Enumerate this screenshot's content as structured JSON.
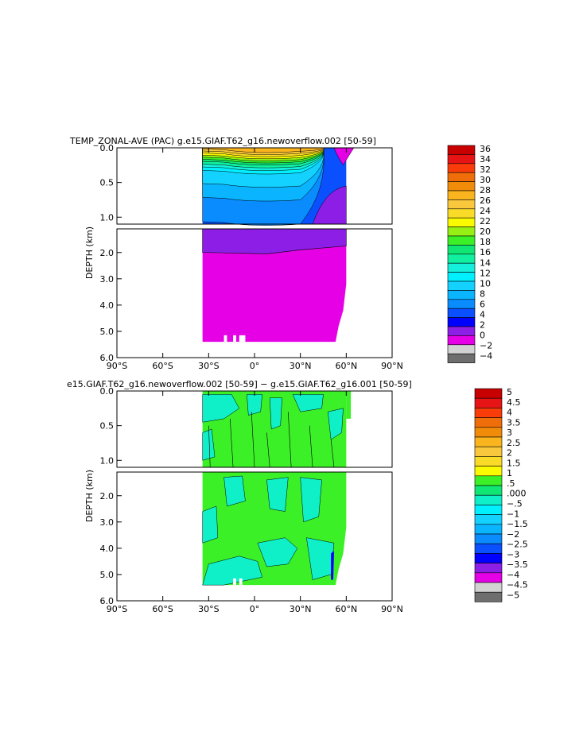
{
  "colors": {
    "temp_palette": [
      "#6e6e6e",
      "#d2d2d2",
      "#e600e6",
      "#8c1ee6",
      "#0000ff",
      "#0a50ff",
      "#0a8cff",
      "#0ab4ff",
      "#14d2ff",
      "#00f0ff",
      "#14f0dc",
      "#10f0a0",
      "#10e673",
      "#3cf028",
      "#96f014",
      "#fafa00",
      "#fadc28",
      "#fac83c",
      "#fab41e",
      "#f08c0a",
      "#f06e0a",
      "#fa3c0a",
      "#e61414",
      "#c80000"
    ],
    "diff_palette": [
      "#6e6e6e",
      "#d2d2d2",
      "#e600e6",
      "#8c1ee6",
      "#0000ff",
      "#0a50ff",
      "#0a8cff",
      "#0ab4ff",
      "#14d2ff",
      "#00f0ff",
      "#10f0c8",
      "#10e673",
      "#3cf028",
      "#fafa00",
      "#fadc28",
      "#fac83c",
      "#fab41e",
      "#f08c0a",
      "#f06e0a",
      "#fa3c0a",
      "#e61414",
      "#c80000"
    ]
  },
  "chart_data": [
    {
      "type": "heatmap",
      "title": "TEMP_ZONAL-AVE (PAC) g.e15.GIAF.T62_g16.newoverflow.002 [50-59]",
      "ylabel": "DEPTH (km)",
      "xlabel": "",
      "x_ticks": [
        "90°S",
        "60°S",
        "30°S",
        "0°",
        "30°N",
        "60°N",
        "90°N"
      ],
      "x_tick_values": [
        -90,
        -60,
        -30,
        0,
        30,
        60,
        90
      ],
      "y_ticks_upper": [
        "0.0",
        "0.5",
        "1.0"
      ],
      "y_tick_values_upper": [
        0.0,
        0.5,
        1.0
      ],
      "y_ticks_lower": [
        "2.0",
        "3.0",
        "4.0",
        "5.0",
        "6.0"
      ],
      "y_tick_values_lower": [
        2.0,
        3.0,
        4.0,
        5.0,
        6.0
      ],
      "xlim": [
        -90,
        90
      ],
      "ylim_upper": [
        0,
        1.1
      ],
      "ylim_lower": [
        1.1,
        6.0
      ],
      "colorbar_labels": [
        "36",
        "34",
        "32",
        "30",
        "28",
        "26",
        "24",
        "22",
        "20",
        "18",
        "16",
        "14",
        "12",
        "10",
        "8",
        "6",
        "4",
        "2",
        "0",
        "−2",
        "−4"
      ],
      "colorbar_levels": [
        -4,
        -2,
        0,
        2,
        4,
        6,
        8,
        10,
        12,
        14,
        16,
        18,
        20,
        22,
        24,
        26,
        28,
        30,
        32,
        34,
        36
      ],
      "data_extent_lat": [
        -34,
        65
      ],
      "bands": [
        {
          "level": 28,
          "depth_bottom_km": 0.05
        },
        {
          "level": 26,
          "depth_bottom_km": 0.08
        },
        {
          "level": 24,
          "depth_bottom_km": 0.11
        },
        {
          "level": 22,
          "depth_bottom_km": 0.14
        },
        {
          "level": 20,
          "depth_bottom_km": 0.17
        },
        {
          "level": 18,
          "depth_bottom_km": 0.2
        },
        {
          "level": 16,
          "depth_bottom_km": 0.23
        },
        {
          "level": 14,
          "depth_bottom_km": 0.27
        },
        {
          "level": 12,
          "depth_bottom_km": 0.31
        },
        {
          "level": 10,
          "depth_bottom_km": 0.36
        },
        {
          "level": 8,
          "depth_bottom_km": 0.55
        },
        {
          "level": 6,
          "depth_bottom_km": 0.75
        },
        {
          "level": 4,
          "depth_bottom_km": 1.1
        },
        {
          "level": 2,
          "depth_bottom_km": 1.95
        },
        {
          "level": 0,
          "depth_bottom_km": 5.4
        }
      ]
    },
    {
      "type": "heatmap",
      "title": "e15.GIAF.T62_g16.newoverflow.002 [50-59] − g.e15.GIAF.T62_g16.001 [50-59]",
      "ylabel": "DEPTH (km)",
      "xlabel": "",
      "x_ticks": [
        "90°S",
        "60°S",
        "30°S",
        "0°",
        "30°N",
        "60°N",
        "90°N"
      ],
      "x_tick_values": [
        -90,
        -60,
        -30,
        0,
        30,
        60,
        90
      ],
      "y_ticks_upper": [
        "0.0",
        "0.5",
        "1.0"
      ],
      "y_tick_values_upper": [
        0.0,
        0.5,
        1.0
      ],
      "y_ticks_lower": [
        "2.0",
        "3.0",
        "4.0",
        "5.0",
        "6.0"
      ],
      "y_tick_values_lower": [
        2.0,
        3.0,
        4.0,
        5.0,
        6.0
      ],
      "xlim": [
        -90,
        90
      ],
      "ylim_upper": [
        0,
        1.1
      ],
      "ylim_lower": [
        1.1,
        6.0
      ],
      "colorbar_labels": [
        "5",
        "4.5",
        "4",
        "3.5",
        "3",
        "2.5",
        "2",
        "1.5",
        "1",
        ".5",
        ".000",
        "−.5",
        "−1",
        "−1.5",
        "−2",
        "−2.5",
        "−3",
        "−3.5",
        "−4",
        "−4.5",
        "−5"
      ],
      "colorbar_levels": [
        -5,
        -4.5,
        -4,
        -3.5,
        -3,
        -2.5,
        -2,
        -1.5,
        -1,
        -0.5,
        0,
        0.5,
        1,
        1.5,
        2,
        2.5,
        3,
        3.5,
        4,
        4.5,
        5
      ],
      "data_extent_lat": [
        -34,
        65
      ],
      "dominant_range": [
        0,
        0.5
      ],
      "secondary_range": [
        -0.5,
        0
      ]
    }
  ]
}
